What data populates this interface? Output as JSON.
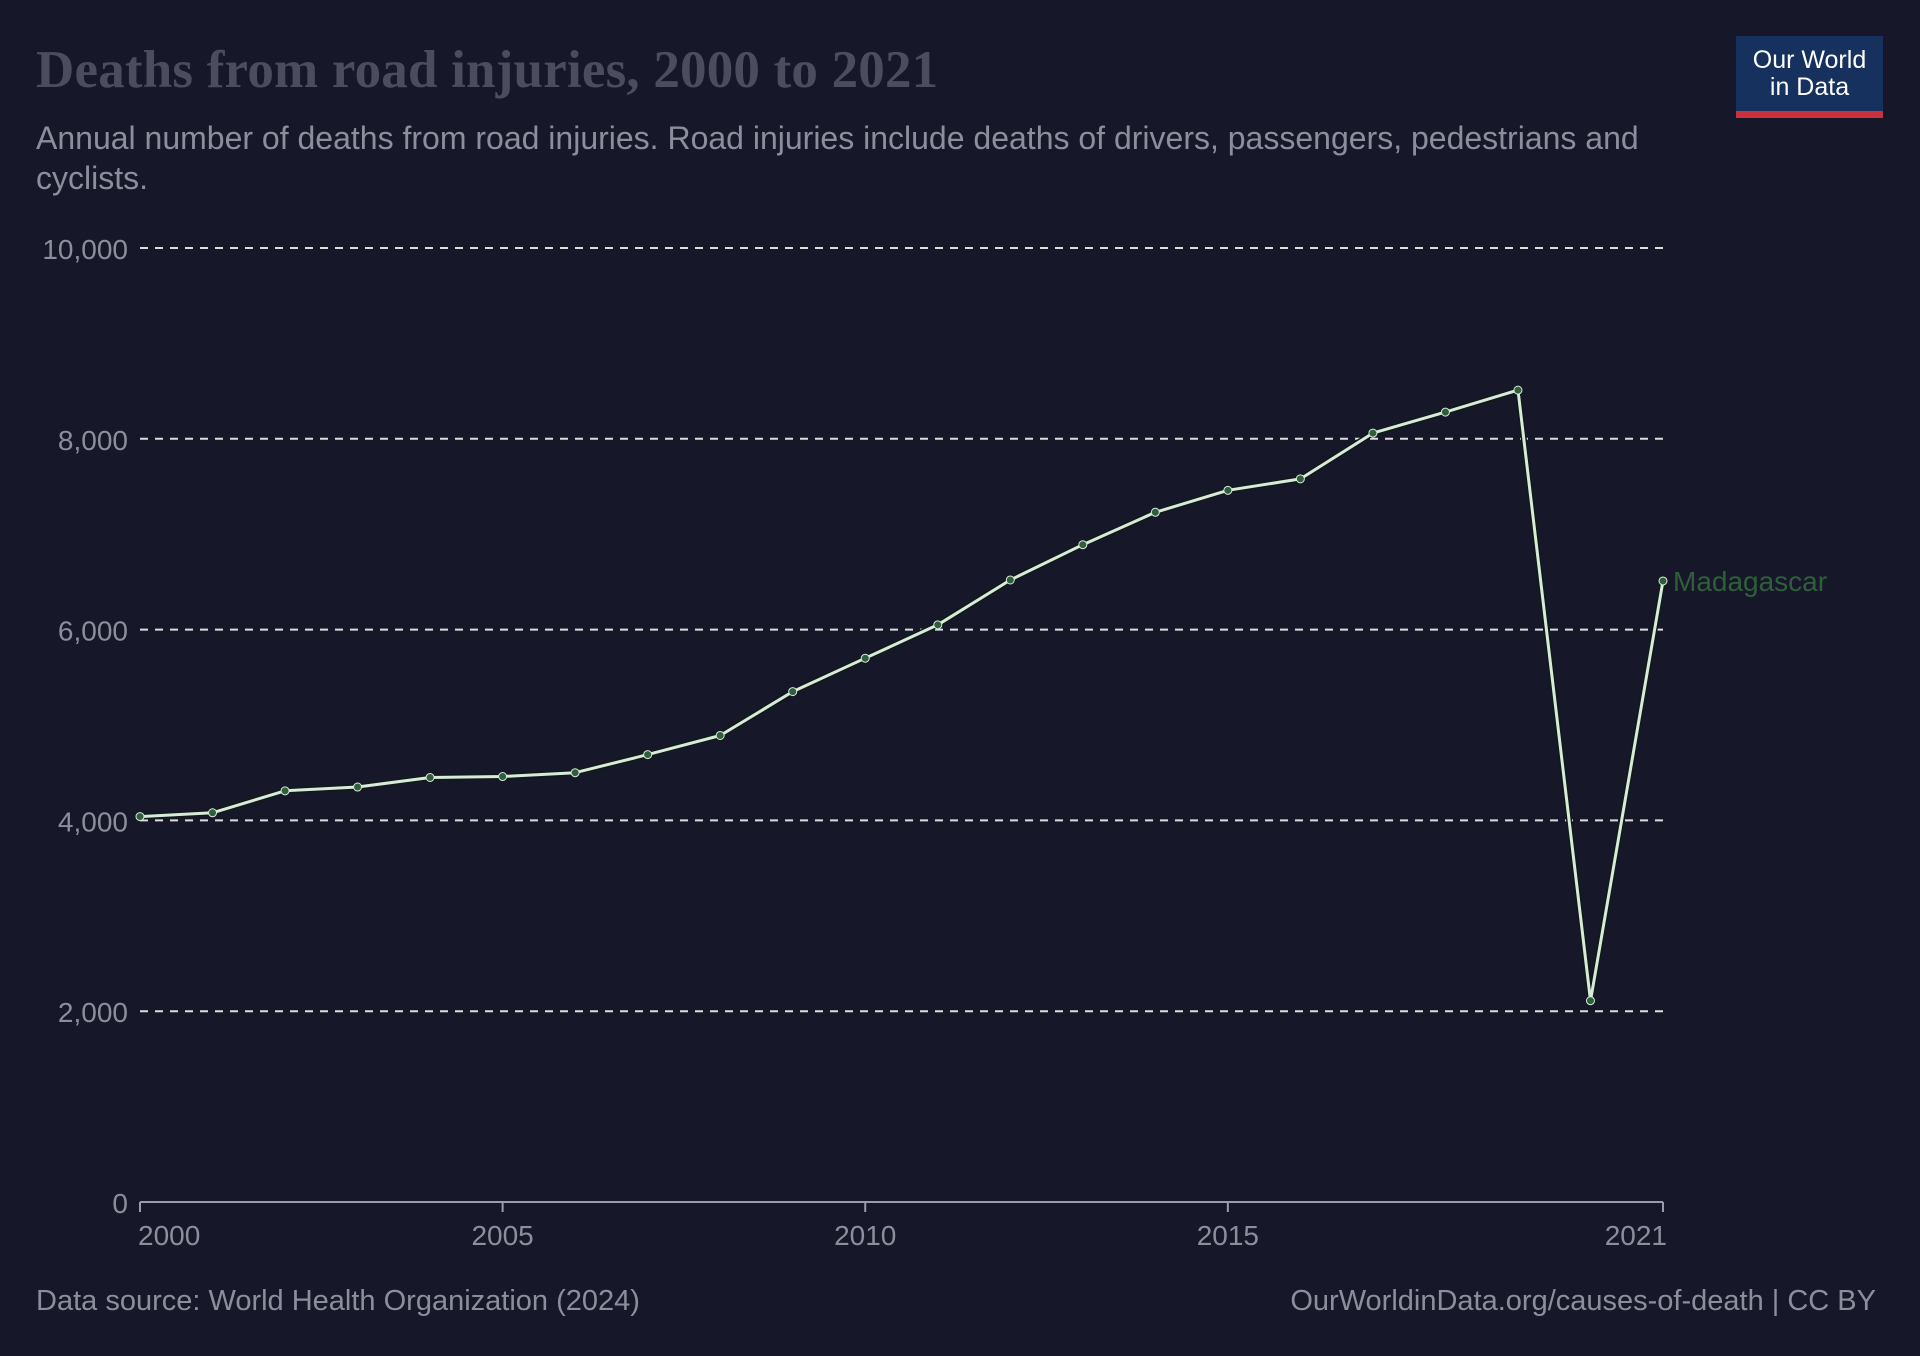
{
  "header": {
    "title": "Deaths from road injuries, 2000 to 2021",
    "subtitle": "Annual number of deaths from road injuries. Road injuries include deaths of drivers, passengers, pedestrians and cyclists."
  },
  "logo": {
    "line1": "Our World",
    "line2": "in Data"
  },
  "footer": {
    "source": "Data source: World Health Organization (2024)",
    "link": "OurWorldinData.org/causes-of-death | CC BY"
  },
  "colors": {
    "background": "#161829",
    "series_line": "#d9eadc",
    "series_marker": "#2e5e3a",
    "series_label": "#2f5e3a",
    "grid": "#dddddd",
    "axis_text": "#8c8e9c"
  },
  "chart_data": {
    "type": "line",
    "title": "Deaths from road injuries, 2000 to 2021",
    "xlabel": "",
    "ylabel": "",
    "x": [
      2000,
      2001,
      2002,
      2003,
      2004,
      2005,
      2006,
      2007,
      2008,
      2009,
      2010,
      2011,
      2012,
      2013,
      2014,
      2015,
      2016,
      2017,
      2018,
      2019,
      2020,
      2021
    ],
    "series": [
      {
        "name": "Madagascar",
        "values": [
          4040,
          4080,
          4310,
          4350,
          4450,
          4460,
          4500,
          4690,
          4890,
          5350,
          5700,
          6050,
          6520,
          6890,
          7230,
          7460,
          7580,
          8060,
          8280,
          8510,
          2110,
          6510
        ]
      }
    ],
    "xlim": [
      2000,
      2021
    ],
    "ylim": [
      0,
      10000
    ],
    "y_ticks": [
      0,
      2000,
      4000,
      6000,
      8000,
      10000
    ],
    "y_tick_labels": [
      "0",
      "2,000",
      "4,000",
      "6,000",
      "8,000",
      "10,000"
    ],
    "x_ticks": [
      2000,
      2005,
      2010,
      2015,
      2021
    ],
    "x_tick_labels": [
      "2000",
      "2005",
      "2010",
      "2015",
      "2021"
    ],
    "grid": "horizontal dashed",
    "legend": "inline label at line end"
  }
}
